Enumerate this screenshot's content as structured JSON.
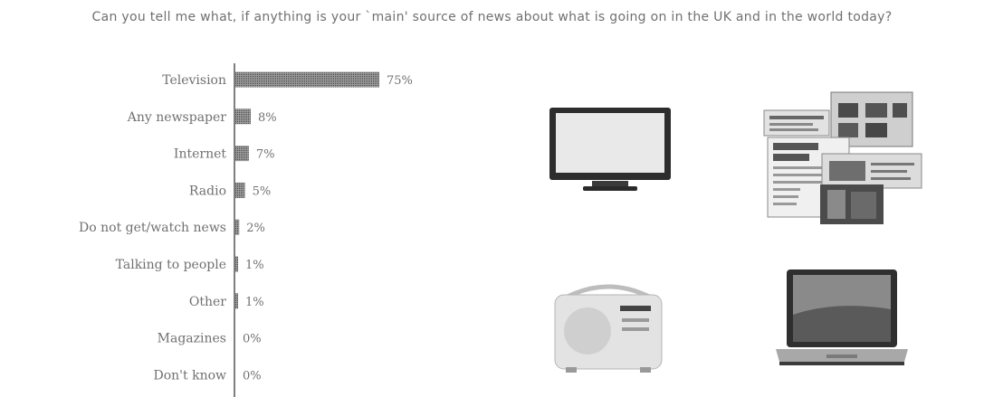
{
  "chart_data": {
    "type": "bar",
    "orientation": "horizontal",
    "title": "Can you tell me what, if anything is your `main' source of news about what is going on in the UK and in the world today?",
    "categories": [
      "Television",
      "Any newspaper",
      "Internet",
      "Radio",
      "Do not get/watch news",
      "Talking to people",
      "Other",
      "Magazines",
      "Don't know"
    ],
    "values": [
      75,
      8,
      7,
      5,
      2,
      1,
      1,
      0,
      0
    ],
    "value_labels": [
      "75%",
      "8%",
      "7%",
      "5%",
      "2%",
      "1%",
      "1%",
      "0%",
      "0%"
    ],
    "unit": "%",
    "xlim": [
      0,
      100
    ],
    "grid": false,
    "legend": "none",
    "bar_color": "#6b6b6b"
  },
  "illustrations": [
    {
      "name": "television-image",
      "depicts": "television"
    },
    {
      "name": "newspapers-image",
      "depicts": "newspapers"
    },
    {
      "name": "radio-image",
      "depicts": "radio"
    },
    {
      "name": "laptop-image",
      "depicts": "laptop"
    }
  ]
}
